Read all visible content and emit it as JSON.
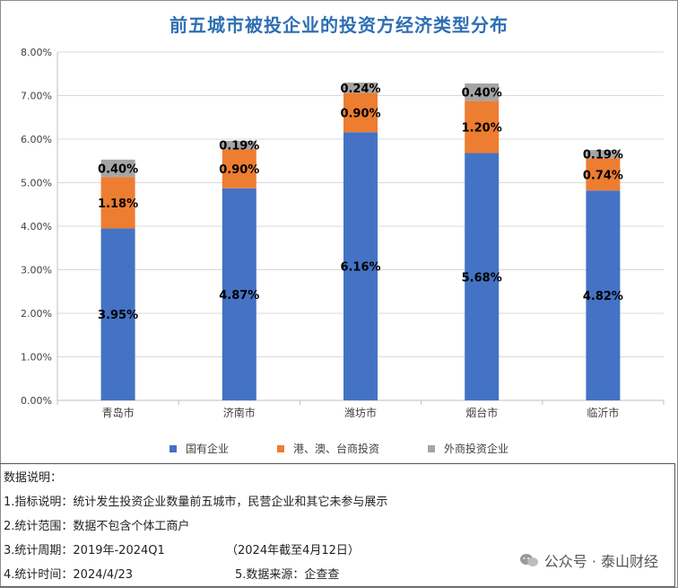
{
  "title": "前五城市被投企业的投资方经济类型分布",
  "chart_data": {
    "type": "bar",
    "stacked": true,
    "title": "前五城市被投企业的投资方经济类型分布",
    "categories": [
      "青岛市",
      "济南市",
      "潍坊市",
      "烟台市",
      "临沂市"
    ],
    "series": [
      {
        "name": "国有企业",
        "color": "#4472c4",
        "values": [
          3.95,
          4.87,
          6.16,
          5.68,
          4.82
        ],
        "labels": [
          "3.95%",
          "4.87%",
          "6.16%",
          "5.68%",
          "4.82%"
        ]
      },
      {
        "name": "港、澳、台商投资",
        "color": "#ed7d31",
        "values": [
          1.18,
          0.9,
          0.9,
          1.2,
          0.74
        ],
        "labels": [
          "1.18%",
          "0.90%",
          "0.90%",
          "1.20%",
          "0.74%"
        ]
      },
      {
        "name": "外商投资企业",
        "color": "#a5a5a5",
        "values": [
          0.4,
          0.19,
          0.24,
          0.4,
          0.19
        ],
        "labels": [
          "0.40%",
          "0.19%",
          "0.24%",
          "0.40%",
          "0.19%"
        ]
      }
    ],
    "ylim": [
      0,
      8
    ],
    "yticks": [
      "0.00%",
      "1.00%",
      "2.00%",
      "3.00%",
      "4.00%",
      "5.00%",
      "6.00%",
      "7.00%",
      "8.00%"
    ],
    "grid": true,
    "legend_position": "bottom"
  },
  "notes": {
    "header": "数据说明：",
    "line1": "1.指标说明：统计发生投资企业数量前五城市，民营企业和其它未参与展示",
    "line2": "2.统计范围：数据不包含个体工商户",
    "line3a": "3.统计周期：2019年-2024Q1",
    "line3b": "（2024年截至4月12日）",
    "line4a": "4.统计时间：2024/4/23",
    "line4b": "5.数据来源：企查查"
  },
  "watermark": {
    "text": "公众号 · 泰山财经",
    "icon": "wechat-icon"
  }
}
